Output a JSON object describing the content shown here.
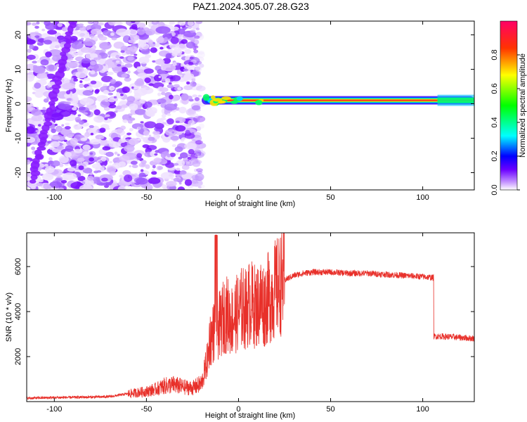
{
  "chart_data": [
    {
      "type": "heatmap",
      "title": "PAZ1.2024.305.07.28.G23",
      "xlabel": "Height of straight line (km)",
      "ylabel": "Frequency (Hz)",
      "xlim": [
        -115,
        128
      ],
      "ylim": [
        -25,
        24
      ],
      "x_ticks": [
        -100,
        -50,
        0,
        50,
        100
      ],
      "y_ticks": [
        -20,
        -10,
        0,
        10,
        20
      ],
      "colorbar": {
        "label": "Normalized spectral amplitude",
        "range": [
          0,
          1
        ],
        "ticks": [
          "0.0",
          "0.2",
          "0.4",
          "0.6",
          "0.8"
        ],
        "colormap": "rainbow"
      },
      "features": {
        "noise_region_x": [
          -115,
          -20
        ],
        "carrier_frequency_hz": 1,
        "carrier_x_range": [
          -20,
          128
        ]
      }
    },
    {
      "type": "line",
      "xlabel": "Height of straight line (km)",
      "ylabel": "SNR (10 * v/v)",
      "xlim": [
        -115,
        128
      ],
      "ylim": [
        0,
        7500
      ],
      "x_ticks": [
        -100,
        -50,
        0,
        50,
        100
      ],
      "y_ticks": [
        2000,
        4000,
        6000
      ],
      "series_color": "#e8302a",
      "series": [
        {
          "x": [
            -115,
            -100,
            -80,
            -70,
            -60,
            -50,
            -45,
            -40,
            -35,
            -30,
            -25,
            -20,
            -18,
            -16,
            -15,
            -13,
            -12,
            -11,
            -10,
            -8,
            -6,
            -4,
            -2,
            0,
            2,
            4,
            6,
            8,
            10,
            12,
            14,
            16,
            18,
            20,
            25,
            30,
            35,
            40,
            50,
            60,
            70,
            80,
            90,
            100,
            106,
            107,
            110,
            120,
            128
          ],
          "y": [
            150,
            180,
            200,
            220,
            350,
            450,
            550,
            700,
            750,
            650,
            600,
            800,
            1500,
            2200,
            2800,
            3200,
            3500,
            3300,
            3400,
            3800,
            3900,
            3600,
            3800,
            4000,
            4200,
            4100,
            4400,
            4300,
            4200,
            4500,
            4300,
            4600,
            4700,
            5000,
            5400,
            5600,
            5700,
            5750,
            5750,
            5700,
            5700,
            5650,
            5600,
            5550,
            5500,
            2900,
            2900,
            2850,
            2800
          ]
        }
      ]
    }
  ]
}
